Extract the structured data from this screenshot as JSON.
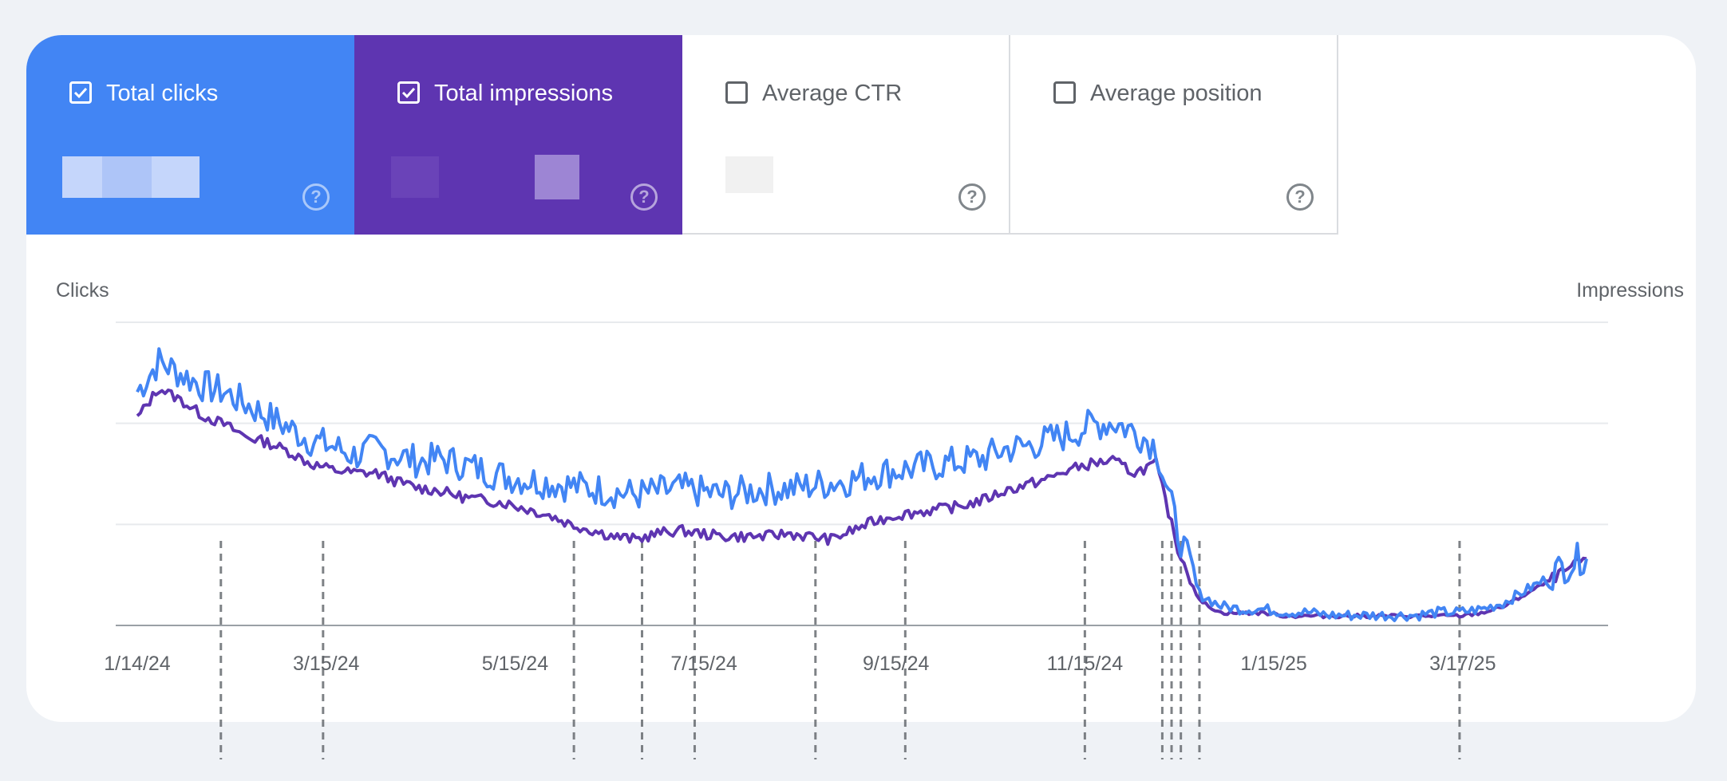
{
  "metrics": [
    {
      "label": "Total clicks",
      "checked": true,
      "color": "#4285f4"
    },
    {
      "label": "Total impressions",
      "checked": true,
      "color": "#5e35b1"
    },
    {
      "label": "Average CTR",
      "checked": false
    },
    {
      "label": "Average position",
      "checked": false
    }
  ],
  "icons": {
    "checkbox_on": "check-square-icon",
    "checkbox_off": "empty-square-icon",
    "help": "question-circle-icon"
  },
  "help_glyph": "?",
  "chart_data": {
    "type": "line",
    "ylabel_left": "Clicks",
    "ylabel_right": "Impressions",
    "x_range": [
      "2024-01-14",
      "2025-04-26"
    ],
    "x_ticks": [
      "1/14/24",
      "3/15/24",
      "5/15/24",
      "7/15/24",
      "9/15/24",
      "11/15/24",
      "1/15/25",
      "3/17/25"
    ],
    "grid": true,
    "y_scale": "relative (value labels hidden)",
    "series": [
      {
        "name": "Total clicks",
        "color": "#4285f4",
        "points": [
          [
            "2024-01-14",
            0.76
          ],
          [
            "2024-01-21",
            0.86
          ],
          [
            "2024-01-28",
            0.82
          ],
          [
            "2024-02-04",
            0.78
          ],
          [
            "2024-02-11",
            0.76
          ],
          [
            "2024-02-18",
            0.72
          ],
          [
            "2024-02-25",
            0.68
          ],
          [
            "2024-03-03",
            0.64
          ],
          [
            "2024-03-10",
            0.6
          ],
          [
            "2024-03-17",
            0.58
          ],
          [
            "2024-03-24",
            0.55
          ],
          [
            "2024-03-31",
            0.57
          ],
          [
            "2024-04-07",
            0.55
          ],
          [
            "2024-04-14",
            0.53
          ],
          [
            "2024-04-21",
            0.54
          ],
          [
            "2024-04-28",
            0.52
          ],
          [
            "2024-05-05",
            0.5
          ],
          [
            "2024-05-12",
            0.48
          ],
          [
            "2024-05-19",
            0.47
          ],
          [
            "2024-05-26",
            0.46
          ],
          [
            "2024-06-02",
            0.45
          ],
          [
            "2024-06-09",
            0.44
          ],
          [
            "2024-06-16",
            0.43
          ],
          [
            "2024-06-23",
            0.42
          ],
          [
            "2024-06-30",
            0.43
          ],
          [
            "2024-07-07",
            0.44
          ],
          [
            "2024-07-14",
            0.43
          ],
          [
            "2024-07-21",
            0.42
          ],
          [
            "2024-07-28",
            0.43
          ],
          [
            "2024-08-04",
            0.44
          ],
          [
            "2024-08-11",
            0.44
          ],
          [
            "2024-08-18",
            0.45
          ],
          [
            "2024-08-25",
            0.46
          ],
          [
            "2024-09-01",
            0.47
          ],
          [
            "2024-09-08",
            0.49
          ],
          [
            "2024-09-15",
            0.5
          ],
          [
            "2024-09-22",
            0.51
          ],
          [
            "2024-09-29",
            0.52
          ],
          [
            "2024-10-06",
            0.53
          ],
          [
            "2024-10-13",
            0.54
          ],
          [
            "2024-10-20",
            0.57
          ],
          [
            "2024-10-27",
            0.58
          ],
          [
            "2024-11-03",
            0.6
          ],
          [
            "2024-11-10",
            0.62
          ],
          [
            "2024-11-17",
            0.65
          ],
          [
            "2024-11-24",
            0.66
          ],
          [
            "2024-12-01",
            0.63
          ],
          [
            "2024-12-08",
            0.58
          ],
          [
            "2024-12-15",
            0.3
          ],
          [
            "2024-12-22",
            0.1
          ],
          [
            "2024-12-29",
            0.06
          ],
          [
            "2025-01-05",
            0.05
          ],
          [
            "2025-01-12",
            0.05
          ],
          [
            "2025-01-19",
            0.04
          ],
          [
            "2025-01-26",
            0.04
          ],
          [
            "2025-02-02",
            0.03
          ],
          [
            "2025-02-09",
            0.03
          ],
          [
            "2025-02-16",
            0.03
          ],
          [
            "2025-02-23",
            0.03
          ],
          [
            "2025-03-02",
            0.03
          ],
          [
            "2025-03-09",
            0.04
          ],
          [
            "2025-03-16",
            0.04
          ],
          [
            "2025-03-23",
            0.05
          ],
          [
            "2025-03-30",
            0.07
          ],
          [
            "2025-04-06",
            0.11
          ],
          [
            "2025-04-13",
            0.15
          ],
          [
            "2025-04-20",
            0.19
          ],
          [
            "2025-04-26",
            0.22
          ]
        ]
      },
      {
        "name": "Total impressions",
        "color": "#5e35b1",
        "points": [
          [
            "2024-01-14",
            0.68
          ],
          [
            "2024-01-21",
            0.78
          ],
          [
            "2024-01-28",
            0.74
          ],
          [
            "2024-02-04",
            0.69
          ],
          [
            "2024-02-11",
            0.66
          ],
          [
            "2024-02-18",
            0.62
          ],
          [
            "2024-02-25",
            0.6
          ],
          [
            "2024-03-03",
            0.57
          ],
          [
            "2024-03-10",
            0.53
          ],
          [
            "2024-03-17",
            0.51
          ],
          [
            "2024-03-24",
            0.5
          ],
          [
            "2024-03-31",
            0.5
          ],
          [
            "2024-04-07",
            0.47
          ],
          [
            "2024-04-14",
            0.45
          ],
          [
            "2024-04-21",
            0.44
          ],
          [
            "2024-04-28",
            0.42
          ],
          [
            "2024-05-05",
            0.41
          ],
          [
            "2024-05-12",
            0.4
          ],
          [
            "2024-05-19",
            0.38
          ],
          [
            "2024-05-26",
            0.36
          ],
          [
            "2024-06-02",
            0.33
          ],
          [
            "2024-06-09",
            0.31
          ],
          [
            "2024-06-16",
            0.29
          ],
          [
            "2024-06-23",
            0.28
          ],
          [
            "2024-06-30",
            0.3
          ],
          [
            "2024-07-07",
            0.31
          ],
          [
            "2024-07-14",
            0.3
          ],
          [
            "2024-07-21",
            0.29
          ],
          [
            "2024-07-28",
            0.29
          ],
          [
            "2024-08-04",
            0.29
          ],
          [
            "2024-08-11",
            0.3
          ],
          [
            "2024-08-18",
            0.29
          ],
          [
            "2024-08-25",
            0.28
          ],
          [
            "2024-09-01",
            0.31
          ],
          [
            "2024-09-08",
            0.34
          ],
          [
            "2024-09-15",
            0.36
          ],
          [
            "2024-09-22",
            0.37
          ],
          [
            "2024-09-29",
            0.38
          ],
          [
            "2024-10-06",
            0.39
          ],
          [
            "2024-10-13",
            0.41
          ],
          [
            "2024-10-20",
            0.44
          ],
          [
            "2024-10-27",
            0.46
          ],
          [
            "2024-11-03",
            0.48
          ],
          [
            "2024-11-10",
            0.51
          ],
          [
            "2024-11-17",
            0.53
          ],
          [
            "2024-11-24",
            0.54
          ],
          [
            "2024-12-01",
            0.5
          ],
          [
            "2024-12-08",
            0.53
          ],
          [
            "2024-12-15",
            0.25
          ],
          [
            "2024-12-22",
            0.08
          ],
          [
            "2024-12-29",
            0.04
          ],
          [
            "2025-01-05",
            0.04
          ],
          [
            "2025-01-12",
            0.04
          ],
          [
            "2025-01-19",
            0.03
          ],
          [
            "2025-01-26",
            0.03
          ],
          [
            "2025-02-02",
            0.03
          ],
          [
            "2025-02-09",
            0.03
          ],
          [
            "2025-02-16",
            0.03
          ],
          [
            "2025-02-23",
            0.03
          ],
          [
            "2025-03-02",
            0.03
          ],
          [
            "2025-03-09",
            0.03
          ],
          [
            "2025-03-16",
            0.03
          ],
          [
            "2025-03-23",
            0.04
          ],
          [
            "2025-03-30",
            0.06
          ],
          [
            "2025-04-06",
            0.1
          ],
          [
            "2025-04-13",
            0.14
          ],
          [
            "2025-04-20",
            0.18
          ],
          [
            "2025-04-26",
            0.22
          ]
        ]
      }
    ],
    "annotations": [
      {
        "date": "2024-02-10"
      },
      {
        "date": "2024-03-14"
      },
      {
        "date": "2024-06-03"
      },
      {
        "date": "2024-06-25"
      },
      {
        "date": "2024-07-12"
      },
      {
        "date": "2024-08-20"
      },
      {
        "date": "2024-09-18"
      },
      {
        "date": "2024-11-15"
      },
      {
        "date": "2024-12-10"
      },
      {
        "date": "2024-12-13"
      },
      {
        "date": "2024-12-16"
      },
      {
        "date": "2024-12-22"
      },
      {
        "date": "2025-03-16"
      }
    ]
  }
}
